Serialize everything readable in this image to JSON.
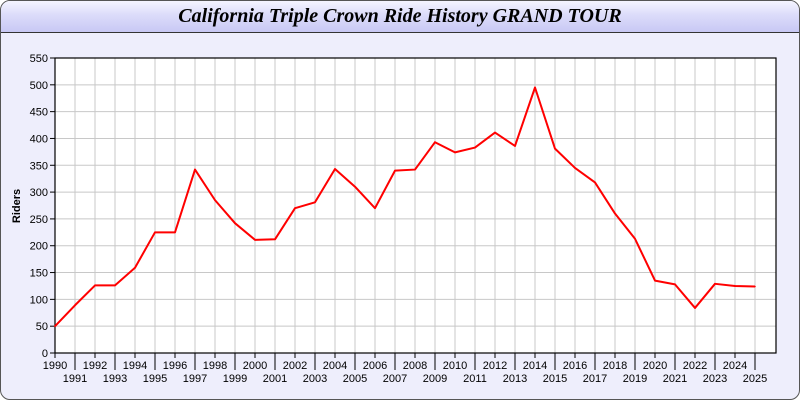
{
  "chart_data": {
    "type": "line",
    "title": "California Triple Crown Ride History GRAND TOUR",
    "xlabel": "",
    "ylabel": "Riders",
    "ylim": [
      0,
      550
    ],
    "y_ticks": [
      0,
      50,
      100,
      150,
      200,
      250,
      300,
      350,
      400,
      450,
      500,
      550
    ],
    "grid": true,
    "line_color": "#ff0000",
    "x": [
      1990,
      1991,
      1992,
      1993,
      1994,
      1995,
      1996,
      1997,
      1998,
      1999,
      2000,
      2001,
      2002,
      2003,
      2004,
      2005,
      2006,
      2007,
      2008,
      2009,
      2010,
      2011,
      2012,
      2013,
      2014,
      2015,
      2016,
      2017,
      2018,
      2019,
      2020,
      2021,
      2022,
      2023,
      2024,
      2025
    ],
    "values": [
      50,
      89,
      126,
      126,
      159,
      225,
      225,
      342,
      285,
      242,
      211,
      212,
      270,
      281,
      343,
      310,
      270,
      340,
      342,
      393,
      374,
      383,
      411,
      386,
      495,
      381,
      345,
      318,
      260,
      213,
      135,
      128,
      84,
      129,
      125,
      124
    ]
  }
}
